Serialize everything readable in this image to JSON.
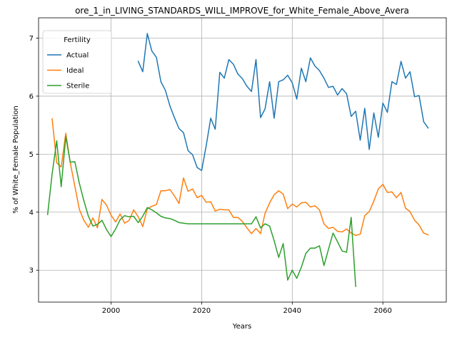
{
  "chart_data": {
    "type": "line",
    "title": "ore_1_in_LIVING_STANDARDS_WILL_IMPROVE_for_White_Female_Above_Avera",
    "xlabel": "Years",
    "ylabel": "% of White_Female Population",
    "xlim": [
      1984,
      2074
    ],
    "ylim": [
      2.45,
      7.35
    ],
    "xticks": [
      2000,
      2020,
      2040,
      2060
    ],
    "yticks": [
      3,
      4,
      5,
      6,
      7
    ],
    "grid": true,
    "legend": {
      "title": "Fertility",
      "placement": "top-left"
    },
    "series": [
      {
        "name": "Actual",
        "color": "#1f77b4",
        "x": [
          2006,
          2007,
          2008,
          2009,
          2010,
          2011,
          2012,
          2013,
          2014,
          2015,
          2016,
          2017,
          2018,
          2019,
          2020,
          2021,
          2022,
          2023,
          2024,
          2025,
          2026,
          2027,
          2028,
          2029,
          2030,
          2031,
          2032,
          2033,
          2034,
          2035,
          2036,
          2037,
          2038,
          2039,
          2040,
          2041,
          2042,
          2043,
          2044,
          2045,
          2046,
          2047,
          2048,
          2049,
          2050,
          2051,
          2052,
          2053,
          2054,
          2055,
          2056,
          2057,
          2058,
          2059,
          2060,
          2061,
          2062,
          2063,
          2064,
          2065,
          2066,
          2067,
          2068,
          2069,
          2070
        ],
        "y": [
          6.6,
          6.42,
          7.08,
          6.78,
          6.67,
          6.25,
          6.1,
          5.83,
          5.63,
          5.44,
          5.37,
          5.06,
          4.99,
          4.77,
          4.72,
          5.14,
          5.62,
          5.43,
          6.41,
          6.31,
          6.63,
          6.55,
          6.38,
          6.3,
          6.17,
          6.08,
          6.63,
          5.63,
          5.78,
          6.25,
          5.62,
          6.25,
          6.28,
          6.36,
          6.23,
          5.95,
          6.48,
          6.25,
          6.66,
          6.52,
          6.44,
          6.31,
          6.15,
          6.17,
          6.02,
          6.13,
          6.04,
          5.65,
          5.74,
          5.24,
          5.79,
          5.08,
          5.71,
          5.29,
          5.88,
          5.72,
          6.25,
          6.2,
          6.6,
          6.31,
          6.42,
          5.99,
          6.01,
          5.56,
          5.45
        ]
      },
      {
        "name": "Ideal",
        "color": "#ff7f0e",
        "x": [
          1987,
          1988,
          1989,
          1990,
          1991,
          1992,
          1993,
          1994,
          1995,
          1996,
          1997,
          1998,
          1999,
          2000,
          2001,
          2002,
          2003,
          2004,
          2005,
          2006,
          2007,
          2008,
          2009,
          2010,
          2011,
          2012,
          2013,
          2014,
          2015,
          2016,
          2017,
          2018,
          2019,
          2020,
          2021,
          2022,
          2023,
          2024,
          2025,
          2026,
          2027,
          2028,
          2029,
          2030,
          2031,
          2032,
          2033,
          2034,
          2035,
          2036,
          2037,
          2038,
          2039,
          2040,
          2041,
          2042,
          2043,
          2044,
          2045,
          2046,
          2047,
          2048,
          2049,
          2050,
          2051,
          2052,
          2053,
          2054,
          2055,
          2056,
          2057,
          2058,
          2059,
          2060,
          2061,
          2062,
          2063,
          2064,
          2065,
          2066,
          2067,
          2068,
          2069,
          2070
        ],
        "y": [
          5.61,
          4.85,
          4.78,
          5.36,
          4.85,
          4.45,
          4.05,
          3.86,
          3.74,
          3.9,
          3.73,
          4.22,
          4.12,
          3.95,
          3.83,
          3.97,
          3.81,
          3.86,
          4.04,
          3.92,
          3.75,
          4.06,
          4.1,
          4.13,
          4.37,
          4.37,
          4.39,
          4.28,
          4.15,
          4.59,
          4.36,
          4.4,
          4.25,
          4.29,
          4.17,
          4.18,
          4.02,
          4.05,
          4.04,
          4.04,
          3.91,
          3.91,
          3.84,
          3.73,
          3.63,
          3.72,
          3.63,
          3.98,
          4.16,
          4.3,
          4.37,
          4.31,
          4.06,
          4.14,
          4.09,
          4.16,
          4.17,
          4.09,
          4.11,
          4.04,
          3.8,
          3.72,
          3.74,
          3.67,
          3.66,
          3.71,
          3.64,
          3.6,
          3.62,
          3.94,
          4.01,
          4.19,
          4.4,
          4.48,
          4.34,
          4.35,
          4.25,
          4.34,
          4.07,
          4.01,
          3.86,
          3.78,
          3.64,
          3.61
        ]
      },
      {
        "name": "Sterile",
        "color": "#2ca02c",
        "x": [
          1986,
          1987,
          1988,
          1989,
          1990,
          1991,
          1992,
          1993,
          1994,
          1995,
          1996,
          1997,
          1998,
          1999,
          2000,
          2001,
          2002,
          2003,
          2004,
          2005,
          2006,
          2007,
          2008,
          2009,
          2010,
          2011,
          2012,
          2013,
          2014,
          2015,
          2016,
          2017,
          2018,
          2019,
          2020,
          2021,
          2022,
          2023,
          2024,
          2025,
          2026,
          2027,
          2028,
          2029,
          2030,
          2031,
          2032,
          2033,
          2034,
          2035,
          2036,
          2037,
          2038,
          2039,
          2040,
          2041,
          2042,
          2043,
          2044,
          2045,
          2046,
          2047,
          2048,
          2049,
          2050,
          2051,
          2052,
          2053,
          2054
        ],
        "y": [
          3.96,
          4.66,
          5.23,
          4.44,
          5.3,
          4.86,
          4.87,
          4.5,
          4.2,
          3.93,
          3.76,
          3.79,
          3.86,
          3.7,
          3.58,
          3.71,
          3.87,
          3.94,
          3.92,
          3.93,
          3.82,
          3.93,
          4.08,
          4.04,
          3.99,
          3.93,
          3.9,
          3.89,
          3.86,
          3.82,
          3.81,
          3.8,
          3.8,
          3.8,
          3.8,
          3.8,
          3.8,
          3.8,
          3.8,
          3.8,
          3.8,
          3.8,
          3.8,
          3.8,
          3.8,
          3.8,
          3.92,
          3.73,
          3.8,
          3.76,
          3.51,
          3.22,
          3.46,
          2.83,
          3.0,
          2.86,
          3.05,
          3.29,
          3.38,
          3.38,
          3.42,
          3.08,
          3.36,
          3.64,
          3.49,
          3.33,
          3.31,
          3.91,
          2.72
        ]
      }
    ]
  }
}
